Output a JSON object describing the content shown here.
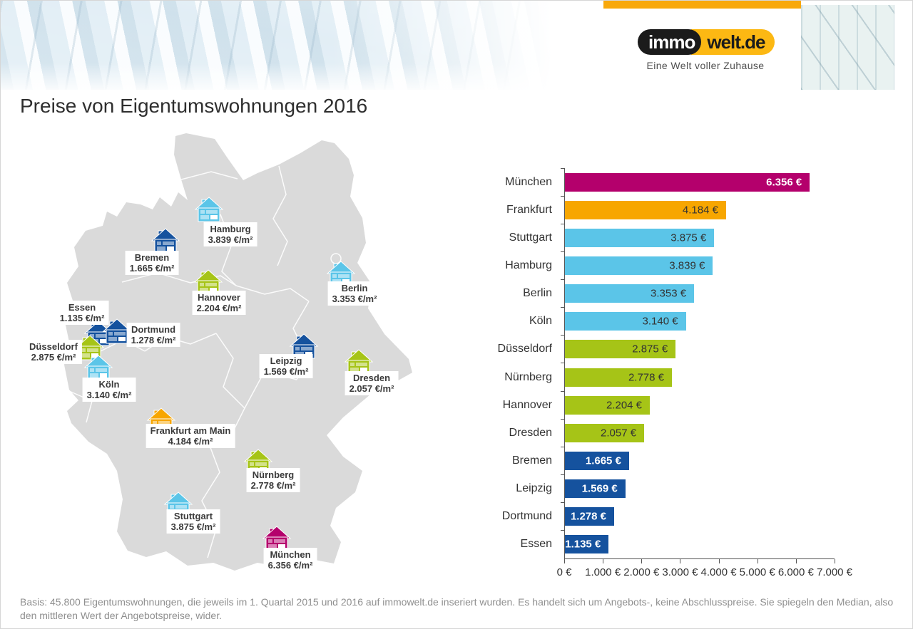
{
  "header": {
    "logo": {
      "part1": "immo",
      "part2": "welt.de",
      "tagline": "Eine Welt voller Zuhause"
    },
    "topbar_yellow": "#F8A80B",
    "logo_yellow": "#FCB813"
  },
  "title": "Preise von Eigentumswohnungen 2016",
  "palette": {
    "magenta": "#B4006C",
    "orange": "#F7A600",
    "lightblue": "#5BC5E8",
    "green": "#A6C417",
    "darkblue": "#15529E"
  },
  "map": {
    "cities": [
      {
        "name": "Hamburg",
        "price": "3.839 €/m²",
        "color": "lightblue"
      },
      {
        "name": "Bremen",
        "price": "1.665 €/m²",
        "color": "darkblue"
      },
      {
        "name": "Berlin",
        "price": "3.353 €/m²",
        "color": "lightblue"
      },
      {
        "name": "Hannover",
        "price": "2.204 €/m²",
        "color": "green"
      },
      {
        "name": "Essen",
        "price": "1.135 €/m²",
        "color": "darkblue"
      },
      {
        "name": "Dortmund",
        "price": "1.278 €/m²",
        "color": "darkblue"
      },
      {
        "name": "Düsseldorf",
        "price": "2.875 €/m²",
        "color": "green"
      },
      {
        "name": "Köln",
        "price": "3.140 €/m²",
        "color": "lightblue"
      },
      {
        "name": "Leipzig",
        "price": "1.569 €/m²",
        "color": "darkblue"
      },
      {
        "name": "Dresden",
        "price": "2.057 €/m²",
        "color": "green"
      },
      {
        "name": "Frankfurt am Main",
        "price": "4.184 €/m²",
        "color": "orange"
      },
      {
        "name": "Nürnberg",
        "price": "2.778 €/m²",
        "color": "green"
      },
      {
        "name": "Stuttgart",
        "price": "3.875 €/m²",
        "color": "lightblue"
      },
      {
        "name": "München",
        "price": "6.356 €/m²",
        "color": "magenta"
      }
    ]
  },
  "chart_data": {
    "type": "bar",
    "orientation": "horizontal",
    "title": "Preise von Eigentumswohnungen 2016",
    "unit": "€/m²",
    "categories": [
      "München",
      "Frankfurt",
      "Stuttgart",
      "Hamburg",
      "Berlin",
      "Köln",
      "Düsseldorf",
      "Nürnberg",
      "Hannover",
      "Dresden",
      "Bremen",
      "Leipzig",
      "Dortmund",
      "Essen"
    ],
    "values": [
      6356,
      4184,
      3875,
      3839,
      3353,
      3140,
      2875,
      2778,
      2204,
      2057,
      1665,
      1569,
      1278,
      1135
    ],
    "value_labels": [
      "6.356 €",
      "4.184 €",
      "3.875 €",
      "3.839 €",
      "3.353 €",
      "3.140 €",
      "2.875 €",
      "2.778 €",
      "2.204 €",
      "2.057 €",
      "1.665 €",
      "1.569 €",
      "1.278 €",
      "1.135 €"
    ],
    "bar_colors": [
      "magenta",
      "orange",
      "lightblue",
      "lightblue",
      "lightblue",
      "lightblue",
      "green",
      "green",
      "green",
      "green",
      "darkblue",
      "darkblue",
      "darkblue",
      "darkblue"
    ],
    "value_text_colors": [
      "white",
      "dark",
      "dark",
      "dark",
      "dark",
      "dark",
      "dark",
      "dark",
      "dark",
      "dark",
      "white",
      "white",
      "white",
      "white"
    ],
    "x_ticks": [
      "0 €",
      "1.000 €",
      "2.000 €",
      "3.000 €",
      "4.000 €",
      "5.000 €",
      "6.000 €",
      "7.000 €"
    ],
    "xlim": [
      0,
      7000
    ],
    "grid": false,
    "legend": false
  },
  "footer": {
    "text": "Basis: 45.800 Eigentumswohnungen, die jeweils im 1. Quartal 2015 und 2016 auf immowelt.de inseriert wurden. Es handelt sich um Angebots-, keine Abschlusspreise. Sie spiegeln den Median, also den mittleren Wert der Angebotspreise, wider."
  }
}
